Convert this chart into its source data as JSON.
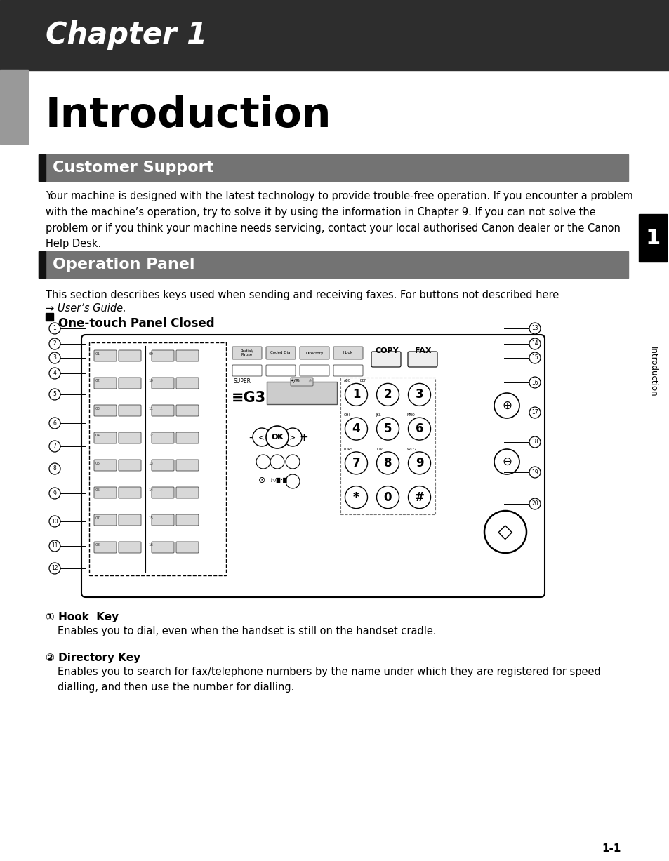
{
  "bg_color": "#ffffff",
  "dark_header_color": "#2d2d2d",
  "section_header_color": "#737373",
  "chapter_text": "Chapter 1",
  "intro_text": "Introduction",
  "section1_title": "Customer Support",
  "section2_title": "Operation Panel",
  "subsection_title": "One-touch Panel Closed",
  "customer_support_body": "Your machine is designed with the latest technology to provide trouble-free operation. If you encounter a problem\nwith the machine’s operation, try to solve it by using the information in Chapter 9. If you can not solve the\nproblem or if you think your machine needs servicing, contact your local authorised Canon dealer or the Canon\nHelp Desk.",
  "op_panel_body1": "This section describes keys used when sending and receiving faxes. For buttons not described here",
  "op_panel_body2": "→ User’s Guide.",
  "item1_num": "①",
  "item1_title": "Hook  Key",
  "item1_body": "Enables you to dial, even when the handset is still on the handset cradle.",
  "item2_num": "②",
  "item2_title": "Directory Key",
  "item2_body": "Enables you to search for fax/telephone numbers by the name under which they are registered for speed\ndialling, and then use the number for dialling.",
  "page_number": "1-1",
  "sidebar_text": "Introduction",
  "sidebar_num": "1"
}
